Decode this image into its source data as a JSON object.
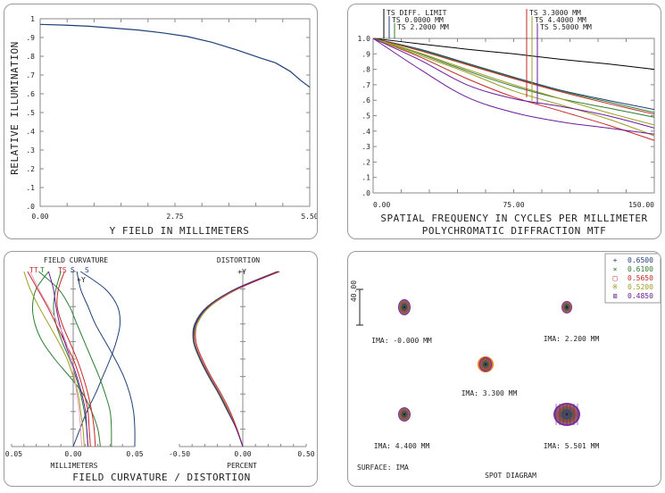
{
  "chart_data": [
    {
      "type": "line",
      "id": "relative-illumination",
      "xlabel": "Y FIELD IN MILLIMETERS",
      "ylabel": "RELATIVE ILLUMINATION",
      "xlim": [
        0,
        5.5
      ],
      "ylim": [
        0,
        1
      ],
      "xticks": [
        "0.00",
        "2.75",
        "5.50"
      ],
      "yticks": [
        ".0",
        ".1",
        ".2",
        ".3",
        ".4",
        ".5",
        ".6",
        ".7",
        ".8",
        ".9",
        "1"
      ],
      "color": "#1f3f78",
      "x": [
        0,
        0.5,
        1.0,
        1.5,
        2.0,
        2.5,
        3.0,
        3.5,
        4.0,
        4.5,
        4.8,
        5.1,
        5.3,
        5.5
      ],
      "y": [
        0.97,
        0.966,
        0.96,
        0.95,
        0.94,
        0.925,
        0.905,
        0.875,
        0.835,
        0.79,
        0.765,
        0.72,
        0.675,
        0.635
      ]
    },
    {
      "type": "line",
      "id": "mtf",
      "title": "POLYCHROMATIC DIFFRACTION MTF",
      "xlabel": "SPATIAL FREQUENCY IN CYCLES PER MILLIMETER",
      "xlim": [
        0,
        150
      ],
      "ylim": [
        0,
        1
      ],
      "xticks": [
        "0.00",
        "75.00",
        "150.00"
      ],
      "yticks": [
        ".0",
        ".1",
        ".2",
        ".3",
        ".4",
        ".5",
        ".6",
        ".7",
        ".8",
        ".9",
        "1.0"
      ],
      "legend": [
        {
          "label": "TS DIFF. LIMIT",
          "color": "#000000",
          "tick": "#000000"
        },
        {
          "label": "TS 0.0000 MM",
          "color": "#1f3f78",
          "tick": "#1f3f78"
        },
        {
          "label": "TS 2.2000 MM",
          "color": "#2e7d32",
          "tick": "#2e7d32"
        },
        {
          "label": "TS 3.3000 MM",
          "color": "#c62828",
          "tick": "#c62828"
        },
        {
          "label": "TS 4.4000 MM",
          "color": "#9e9d24",
          "tick": "#9e9d24"
        },
        {
          "label": "TS 5.5000 MM",
          "color": "#6a1b9a",
          "tick": "#6a1b9a"
        }
      ],
      "x": [
        0,
        25,
        50,
        75,
        100,
        125,
        150
      ],
      "series": [
        {
          "color": "#000000",
          "y": [
            1.0,
            0.965,
            0.93,
            0.9,
            0.865,
            0.835,
            0.8
          ]
        },
        {
          "color": "#1f3f78",
          "y": [
            1.0,
            0.93,
            0.84,
            0.75,
            0.665,
            0.6,
            0.54
          ]
        },
        {
          "color": "#2e7d32",
          "y": [
            1.0,
            0.925,
            0.835,
            0.745,
            0.66,
            0.59,
            0.52
          ]
        },
        {
          "color": "#2e7d32",
          "y": [
            1.0,
            0.9,
            0.79,
            0.69,
            0.61,
            0.55,
            0.49
          ]
        },
        {
          "color": "#c62828",
          "y": [
            1.0,
            0.92,
            0.83,
            0.74,
            0.655,
            0.58,
            0.51
          ]
        },
        {
          "color": "#c62828",
          "y": [
            1.0,
            0.88,
            0.74,
            0.62,
            0.53,
            0.44,
            0.34
          ]
        },
        {
          "color": "#9e9d24",
          "y": [
            1.0,
            0.905,
            0.8,
            0.7,
            0.61,
            0.52,
            0.44
          ]
        },
        {
          "color": "#9e9d24",
          "y": [
            1.0,
            0.89,
            0.78,
            0.66,
            0.57,
            0.48,
            0.37
          ]
        },
        {
          "color": "#6a1b9a",
          "y": [
            1.0,
            0.86,
            0.7,
            0.61,
            0.56,
            0.5,
            0.42
          ]
        },
        {
          "color": "#6a1b9a",
          "y": [
            1.0,
            0.8,
            0.62,
            0.52,
            0.46,
            0.42,
            0.38
          ]
        }
      ]
    },
    {
      "type": "line",
      "id": "field-curvature",
      "title": "FIELD CURVATURE",
      "xlabel": "MILLIMETERS",
      "xlim": [
        -0.05,
        0.05
      ],
      "xticks": [
        "-0.05",
        "0.00",
        "0.05"
      ],
      "axis_label": "+Y",
      "legend": [
        {
          "label": "TT",
          "color": "#c62828"
        },
        {
          "label": "T",
          "color": "#2e7d32"
        },
        {
          "label": "TS",
          "color": "#c62828"
        },
        {
          "label": "S",
          "color": "#1f3f78"
        },
        {
          "label": "S",
          "color": "#1f3f78"
        }
      ],
      "y": [
        0,
        0.1,
        0.2,
        0.3,
        0.4,
        0.5,
        0.6,
        0.7,
        0.8,
        0.9,
        1.0
      ],
      "series": [
        {
          "color": "#1f3f78",
          "x": [
            0,
            0.0055,
            0.011,
            0.018,
            0.024,
            0.03,
            0.035,
            0.038,
            0.036,
            0.026,
            0.006
          ]
        },
        {
          "color": "#1f3f78",
          "x": [
            0.05,
            0.05,
            0.049,
            0.046,
            0.041,
            0.034,
            0.026,
            0.018,
            0.012,
            0.006,
            0.003
          ]
        },
        {
          "color": "#2e7d32",
          "x": [
            0.022,
            0.02,
            0.015,
            0.008,
            -0.003,
            -0.015,
            -0.025,
            -0.031,
            -0.033,
            -0.03,
            -0.02
          ]
        },
        {
          "color": "#2e7d32",
          "x": [
            0.031,
            0.031,
            0.03,
            0.026,
            0.021,
            0.015,
            0.009,
            0.003,
            -0.003,
            -0.012,
            -0.028
          ]
        },
        {
          "color": "#2e7d32",
          "x": [
            0.012,
            0.011,
            0.009,
            0.006,
            0.002,
            -0.003,
            -0.009,
            -0.014,
            -0.016,
            -0.014,
            -0.01
          ]
        },
        {
          "color": "#c62828",
          "x": [
            0.018,
            0.017,
            0.015,
            0.012,
            0.008,
            0.003,
            -0.003,
            -0.009,
            -0.013,
            -0.012,
            -0.007
          ]
        },
        {
          "color": "#c62828",
          "x": [
            0.014,
            0.013,
            0.012,
            0.009,
            0.005,
            0.0,
            -0.007,
            -0.014,
            -0.021,
            -0.029,
            -0.037
          ]
        },
        {
          "color": "#9e9d24",
          "x": [
            0.009,
            0.008,
            0.006,
            0.004,
            0.0,
            -0.005,
            -0.012,
            -0.02,
            -0.028,
            -0.035,
            -0.04
          ]
        },
        {
          "color": "#6a1b9a",
          "x": [
            0.012,
            0.011,
            0.01,
            0.007,
            0.003,
            -0.002,
            -0.007,
            -0.011,
            -0.014,
            -0.016,
            -0.02
          ]
        },
        {
          "color": "#e8a0c0",
          "x": [
            0.007,
            0.006,
            0.005,
            0.003,
            0.001,
            -0.002,
            -0.006,
            -0.012,
            -0.02,
            -0.028,
            -0.035
          ]
        }
      ]
    },
    {
      "type": "line",
      "id": "distortion",
      "title": "DISTORTION",
      "xlabel": "PERCENT",
      "xlim": [
        -0.5,
        0.5
      ],
      "xticks": [
        "-0.50",
        "0.00",
        "0.50"
      ],
      "axis_label": "+Y",
      "y": [
        0,
        0.1,
        0.2,
        0.3,
        0.4,
        0.5,
        0.6,
        0.7,
        0.8,
        0.9,
        1.0
      ],
      "series": [
        {
          "color": "#1f3f78",
          "x": [
            0,
            -0.05,
            -0.11,
            -0.18,
            -0.26,
            -0.33,
            -0.38,
            -0.37,
            -0.27,
            -0.05,
            0.28
          ]
        },
        {
          "color": "#2e7d32",
          "x": [
            0,
            -0.05,
            -0.12,
            -0.19,
            -0.27,
            -0.34,
            -0.39,
            -0.38,
            -0.28,
            -0.06,
            0.27
          ]
        },
        {
          "color": "#c62828",
          "x": [
            0,
            -0.045,
            -0.1,
            -0.17,
            -0.25,
            -0.32,
            -0.37,
            -0.36,
            -0.26,
            -0.04,
            0.29
          ]
        },
        {
          "color": "#9e9d24",
          "x": [
            0,
            -0.05,
            -0.11,
            -0.18,
            -0.26,
            -0.33,
            -0.38,
            -0.36,
            -0.26,
            -0.05,
            0.27
          ]
        },
        {
          "color": "#6a1b9a",
          "x": [
            0,
            -0.05,
            -0.115,
            -0.185,
            -0.265,
            -0.335,
            -0.385,
            -0.375,
            -0.275,
            -0.055,
            0.28
          ]
        }
      ],
      "footer_title": "FIELD CURVATURE / DISTORTION"
    },
    {
      "type": "scatter",
      "id": "spot-diagram",
      "title": "SPOT DIAGRAM",
      "surface_label": "SURFACE: IMA",
      "scale_label": "40.00",
      "legend": [
        {
          "symbol": "+",
          "label": "0.6500",
          "color": "#1f3f78"
        },
        {
          "symbol": "×",
          "label": "0.6100",
          "color": "#2e7d32"
        },
        {
          "symbol": "□",
          "label": "0.5650",
          "color": "#c62828"
        },
        {
          "symbol": "※",
          "label": "0.5200",
          "color": "#9e9d24"
        },
        {
          "symbol": "⊠",
          "label": "0.4850",
          "color": "#6a1b9a"
        }
      ],
      "spots": [
        {
          "label": "IMA: -0.000 MM",
          "size": "medium"
        },
        {
          "label": "IMA: 2.200 MM",
          "size": "small"
        },
        {
          "label": "IMA: 3.300 MM",
          "size": "medium"
        },
        {
          "label": "IMA: 4.400 MM",
          "size": "medium"
        },
        {
          "label": "IMA: 5.501 MM",
          "size": "large"
        }
      ]
    }
  ]
}
